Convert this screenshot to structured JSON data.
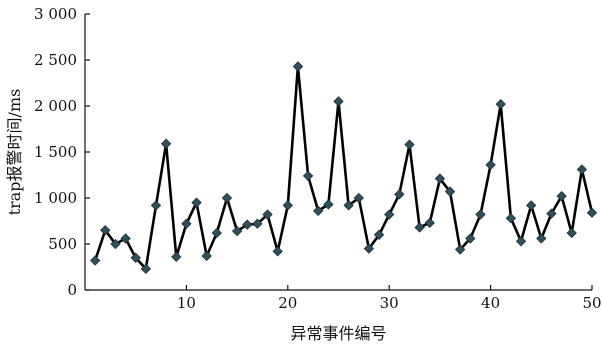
{
  "chart_data": {
    "type": "line",
    "xlabel": "异常事件编号",
    "ylabel": "trap报警时间/ms",
    "xlim": [
      0,
      50
    ],
    "ylim": [
      0,
      3000
    ],
    "xticks": [
      10,
      20,
      30,
      40,
      50
    ],
    "xtick_labels": [
      "10",
      "20",
      "30",
      "40",
      "50"
    ],
    "yticks": [
      0,
      500,
      1000,
      1500,
      2000,
      2500,
      3000
    ],
    "ytick_labels": [
      "0",
      "500",
      "1 000",
      "1 500",
      "2 000",
      "2 500",
      "3 000"
    ],
    "grid": false,
    "series": [
      {
        "marker": "diamond",
        "color": "#2f4f5a",
        "x": [
          1,
          2,
          3,
          4,
          5,
          6,
          7,
          8,
          9,
          10,
          11,
          12,
          13,
          14,
          15,
          16,
          17,
          18,
          19,
          20,
          21,
          22,
          23,
          24,
          25,
          26,
          27,
          28,
          29,
          30,
          31,
          32,
          33,
          34,
          35,
          36,
          37,
          38,
          39,
          40,
          41,
          42,
          43,
          44,
          45,
          46,
          47,
          48,
          49,
          50
        ],
        "values": [
          320,
          650,
          500,
          560,
          350,
          230,
          920,
          1590,
          360,
          720,
          950,
          370,
          620,
          1000,
          640,
          710,
          720,
          820,
          420,
          920,
          2430,
          1240,
          860,
          930,
          2050,
          920,
          1000,
          450,
          600,
          820,
          1040,
          1580,
          680,
          730,
          1210,
          1070,
          440,
          560,
          820,
          1360,
          2020,
          780,
          530,
          920,
          560,
          830,
          1020,
          620,
          1310,
          840
        ]
      }
    ]
  }
}
